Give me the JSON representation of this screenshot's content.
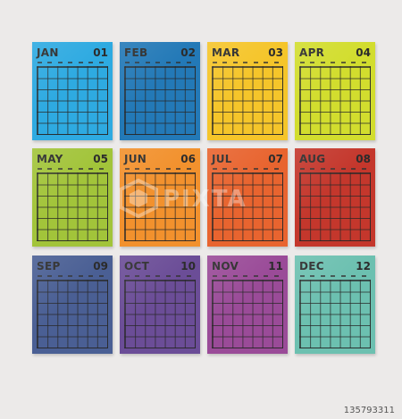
{
  "months": [
    {
      "name": "JAN",
      "num": "01",
      "color": "#2eaae1"
    },
    {
      "name": "FEB",
      "num": "02",
      "color": "#2379b7"
    },
    {
      "name": "MAR",
      "num": "03",
      "color": "#f5c52a"
    },
    {
      "name": "APR",
      "num": "04",
      "color": "#d2dd2e"
    },
    {
      "name": "MAY",
      "num": "05",
      "color": "#a2c43a"
    },
    {
      "name": "JUN",
      "num": "06",
      "color": "#f2912d"
    },
    {
      "name": "JUL",
      "num": "07",
      "color": "#e8642f"
    },
    {
      "name": "AUG",
      "num": "08",
      "color": "#c4372c"
    },
    {
      "name": "SEP",
      "num": "09",
      "color": "#4a5f94"
    },
    {
      "name": "OCT",
      "num": "10",
      "color": "#6b4d97"
    },
    {
      "name": "NOV",
      "num": "11",
      "color": "#9a4b98"
    },
    {
      "name": "DEC",
      "num": "12",
      "color": "#6cc0b0"
    }
  ],
  "watermark": {
    "text": "PIXTA"
  },
  "stock_id": "135793311"
}
